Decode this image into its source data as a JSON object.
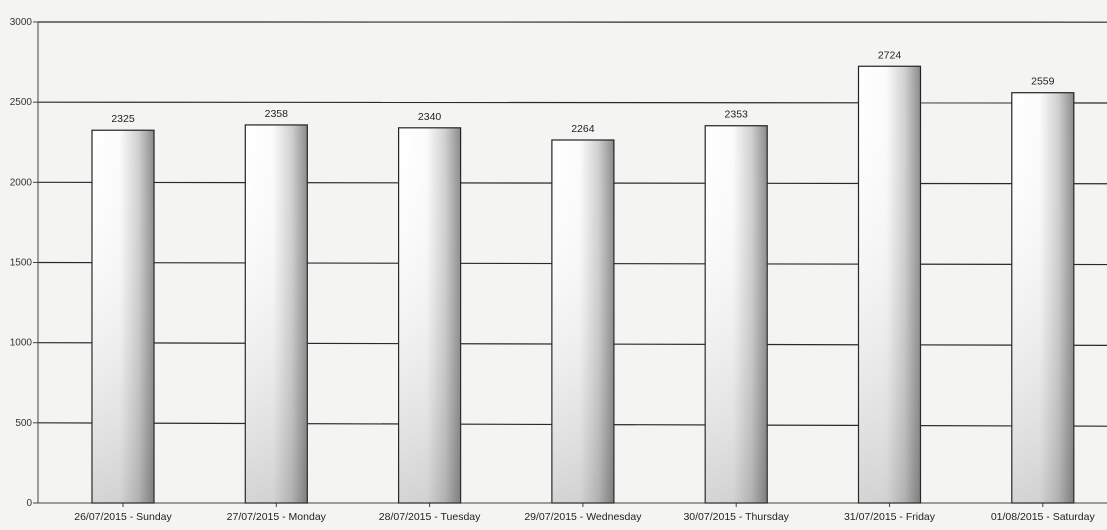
{
  "chart_data": {
    "type": "bar",
    "title": "",
    "xlabel": "",
    "ylabel": "",
    "categories": [
      "26/07/2015 - Sunday",
      "27/07/2015 - Monday",
      "28/07/2015 - Tuesday",
      "29/07/2015 - Wednesday",
      "30/07/2015 - Thursday",
      "31/07/2015 - Friday",
      "01/08/2015 - Saturday"
    ],
    "values": [
      2325,
      2358,
      2340,
      2264,
      2353,
      2724,
      2559
    ],
    "ylim": [
      0,
      3000
    ],
    "yticks": [
      0,
      500,
      1000,
      1500,
      2000,
      2500,
      3000
    ],
    "grid": true,
    "legend": "none"
  }
}
